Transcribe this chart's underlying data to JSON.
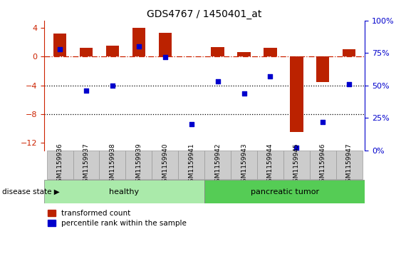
{
  "title": "GDS4767 / 1450401_at",
  "samples": [
    "GSM1159936",
    "GSM1159937",
    "GSM1159938",
    "GSM1159939",
    "GSM1159940",
    "GSM1159941",
    "GSM1159942",
    "GSM1159943",
    "GSM1159944",
    "GSM1159945",
    "GSM1159946",
    "GSM1159947"
  ],
  "red_bars": [
    3.2,
    1.2,
    1.5,
    4.0,
    3.3,
    0.05,
    1.3,
    0.6,
    1.2,
    -10.5,
    -3.5,
    1.0
  ],
  "blue_dots_pct": [
    78,
    46,
    50,
    80,
    72,
    20,
    53,
    44,
    57,
    2,
    22,
    51
  ],
  "ylim_left": [
    -13,
    5
  ],
  "ylim_right": [
    0,
    100
  ],
  "yticks_left": [
    4,
    0,
    -4,
    -8,
    -12
  ],
  "yticks_right": [
    100,
    75,
    50,
    25,
    0
  ],
  "healthy_color": "#AAEAAA",
  "pancreatic_color": "#55CC55",
  "bar_color": "#BB2200",
  "dot_color": "#0000CC",
  "hline_color": "#CC2200",
  "dotted_lines": [
    -4,
    -8
  ],
  "bar_width": 0.5,
  "label_bar": "transformed count",
  "label_dot": "percentile rank within the sample",
  "disease_state_label": "disease state",
  "healthy_label": "healthy",
  "pancreatic_label": "pancreatic tumor",
  "right_axis_color": "#0000CC",
  "left_axis_color": "#CC2200",
  "gray_box_color": "#CCCCCC",
  "gray_box_edge": "#999999"
}
